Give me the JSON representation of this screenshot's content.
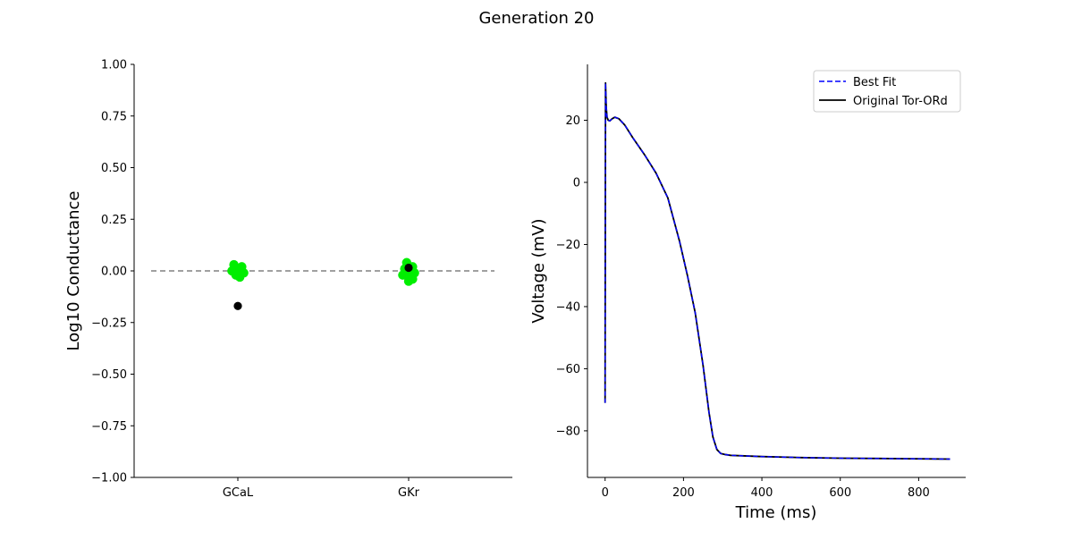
{
  "figure": {
    "title": "Generation 20"
  },
  "chart_data": [
    {
      "type": "scatter",
      "title": "",
      "xlabel": "",
      "ylabel": "Log10 Conductance",
      "categories": [
        "GCaL",
        "GKr"
      ],
      "ylim": [
        -1.0,
        1.0
      ],
      "yticks": [
        "1.00",
        "0.75",
        "0.50",
        "0.25",
        "0.00",
        "−0.25",
        "−0.50",
        "−0.75",
        "−1.00"
      ],
      "ytick_values": [
        1.0,
        0.75,
        0.5,
        0.25,
        0.0,
        -0.25,
        -0.5,
        -0.75,
        -1.0
      ],
      "reference_line": {
        "y": 0.0,
        "style": "dashed",
        "color": "#808080"
      },
      "series": [
        {
          "color": "#00ee00",
          "points": [
            {
              "category": "GCaL",
              "offset": -0.02,
              "y": 0.03
            },
            {
              "category": "GCaL",
              "offset": 0.02,
              "y": 0.02
            },
            {
              "category": "GCaL",
              "offset": -0.03,
              "y": 0.0
            },
            {
              "category": "GCaL",
              "offset": 0.0,
              "y": 0.01
            },
            {
              "category": "GCaL",
              "offset": 0.03,
              "y": -0.01
            },
            {
              "category": "GCaL",
              "offset": -0.01,
              "y": -0.02
            },
            {
              "category": "GCaL",
              "offset": 0.01,
              "y": -0.03
            },
            {
              "category": "GCaL",
              "offset": 0.02,
              "y": 0.0
            },
            {
              "category": "GKr",
              "offset": -0.01,
              "y": 0.04
            },
            {
              "category": "GKr",
              "offset": 0.02,
              "y": 0.02
            },
            {
              "category": "GKr",
              "offset": -0.03,
              "y": -0.02
            },
            {
              "category": "GKr",
              "offset": 0.0,
              "y": 0.0
            },
            {
              "category": "GKr",
              "offset": 0.03,
              "y": -0.01
            },
            {
              "category": "GKr",
              "offset": -0.02,
              "y": 0.01
            },
            {
              "category": "GKr",
              "offset": 0.01,
              "y": -0.03
            },
            {
              "category": "GKr",
              "offset": 0.0,
              "y": -0.05
            },
            {
              "category": "GKr",
              "offset": 0.02,
              "y": -0.04
            }
          ]
        },
        {
          "color": "#000000",
          "points": [
            {
              "category": "GCaL",
              "offset": 0.0,
              "y": -0.17
            },
            {
              "category": "GKr",
              "offset": 0.0,
              "y": 0.015
            }
          ]
        }
      ]
    },
    {
      "type": "line",
      "title": "",
      "xlabel": "Time (ms)",
      "ylabel": "Voltage (mV)",
      "xlim": [
        -45,
        920
      ],
      "ylim": [
        -95,
        38
      ],
      "xticks": [
        "0",
        "200",
        "400",
        "600",
        "800"
      ],
      "xtick_values": [
        0,
        200,
        400,
        600,
        800
      ],
      "yticks": [
        "20",
        "0",
        "−20",
        "−40",
        "−60",
        "−80"
      ],
      "ytick_values": [
        20,
        0,
        -20,
        -40,
        -60,
        -80
      ],
      "legend_position": "top-right",
      "series": [
        {
          "name": "Best Fit",
          "color": "#0000ff",
          "style": "dashed",
          "x": [
            0,
            1,
            2,
            3,
            5,
            8,
            12,
            18,
            25,
            35,
            50,
            70,
            100,
            130,
            160,
            190,
            210,
            230,
            250,
            265,
            275,
            285,
            295,
            305,
            320,
            400,
            500,
            600,
            700,
            800,
            880
          ],
          "y": [
            -71,
            32,
            28,
            24,
            21,
            20,
            19.8,
            20.5,
            21,
            20.5,
            18.5,
            14.5,
            9,
            3,
            -5,
            -19,
            -30,
            -42,
            -59,
            -74,
            -82,
            -86,
            -87.3,
            -87.6,
            -87.9,
            -88.3,
            -88.6,
            -88.8,
            -88.9,
            -89.0,
            -89.1
          ]
        },
        {
          "name": "Original Tor-ORd",
          "color": "#000000",
          "style": "solid",
          "x": [
            0,
            1,
            2,
            3,
            5,
            8,
            12,
            18,
            25,
            35,
            50,
            70,
            100,
            130,
            160,
            190,
            210,
            230,
            250,
            265,
            275,
            285,
            295,
            305,
            320,
            400,
            500,
            600,
            700,
            800,
            880
          ],
          "y": [
            -71,
            32,
            28,
            24,
            21,
            20,
            19.8,
            20.5,
            21,
            20.5,
            18.5,
            14.5,
            9,
            3,
            -5,
            -19,
            -30,
            -42,
            -59,
            -74,
            -82,
            -86,
            -87.3,
            -87.6,
            -87.9,
            -88.3,
            -88.6,
            -88.8,
            -88.9,
            -89.0,
            -89.1
          ]
        }
      ]
    }
  ]
}
